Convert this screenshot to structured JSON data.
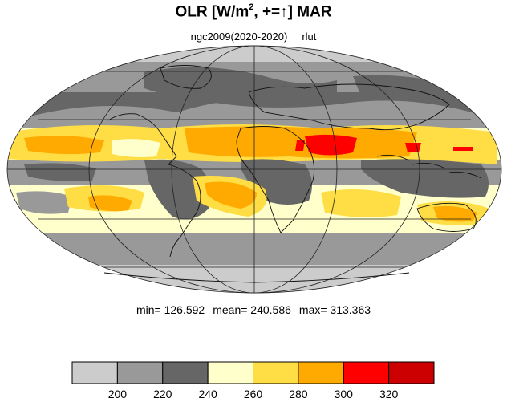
{
  "title": {
    "prefix": "OLR [W/m",
    "sup": "2",
    "suffix": ", +=↑] MAR"
  },
  "subtitle": {
    "experiment": "ngc2009(2020-2020)",
    "variable": "rlut"
  },
  "stats": {
    "min_label": "min=",
    "min": "126.592",
    "mean_label": "mean=",
    "mean": "240.586",
    "max_label": "max=",
    "max": "313.363"
  },
  "colorbar": {
    "colors": [
      "#cccccc",
      "#999999",
      "#666666",
      "#ffffcc",
      "#ffdd44",
      "#ffaa00",
      "#ff0000",
      "#cc0000"
    ],
    "labels": [
      "200",
      "220",
      "240",
      "260",
      "280",
      "300",
      "320"
    ]
  },
  "map": {
    "projection": "Mollweide",
    "ocean_color": "#ffffcc"
  }
}
